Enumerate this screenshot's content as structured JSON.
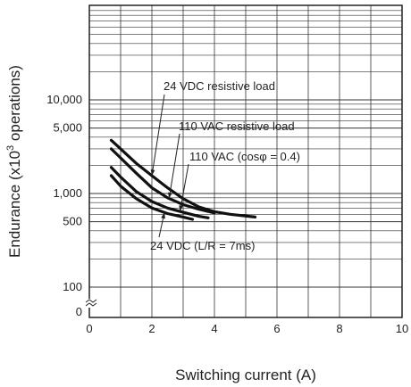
{
  "chart_data": {
    "type": "line",
    "xlabel": "Switching current (A)",
    "ylabel_parts": {
      "prefix": "Endurance (x10",
      "sup": "3",
      "suffix": " operations)"
    },
    "xlim": [
      0,
      10
    ],
    "y_scale": "log (with broken axis below 100)",
    "x_ticks": [
      "0",
      "2",
      "4",
      "6",
      "8",
      "10"
    ],
    "y_ticks": [
      {
        "label": "10,000",
        "value": 10000
      },
      {
        "label": "5,000",
        "value": 5000
      },
      {
        "label": "1,000",
        "value": 1000
      },
      {
        "label": "500",
        "value": 500
      },
      {
        "label": "100",
        "value": 100
      },
      {
        "label": "0",
        "value": 0
      }
    ],
    "grid": true,
    "series": [
      {
        "name": "24 VDC resistive load",
        "x": [
          0.7,
          1.0,
          1.5,
          2.0,
          2.5,
          3.0,
          3.5,
          4.0,
          4.5,
          5.3
        ],
        "y": [
          3700,
          3000,
          2100,
          1550,
          1150,
          880,
          720,
          640,
          600,
          560
        ]
      },
      {
        "name": "110 VAC resistive load",
        "x": [
          0.7,
          1.0,
          1.5,
          2.0,
          2.5,
          3.0,
          3.5,
          4.0
        ],
        "y": [
          3000,
          2400,
          1650,
          1150,
          900,
          760,
          680,
          620
        ]
      },
      {
        "name": "110 VAC (cosφ = 0.4)",
        "x": [
          0.7,
          1.0,
          1.5,
          2.0,
          2.5,
          3.0,
          3.5,
          3.8
        ],
        "y": [
          1900,
          1500,
          1050,
          820,
          700,
          630,
          570,
          550
        ]
      },
      {
        "name": "24 VDC (L/R = 7ms)",
        "x": [
          0.7,
          1.0,
          1.5,
          2.0,
          2.5,
          3.0,
          3.3
        ],
        "y": [
          1550,
          1200,
          880,
          700,
          610,
          560,
          530
        ]
      }
    ],
    "annotations": [
      {
        "series": "24 VDC resistive load",
        "text": "24 VDC resistive load"
      },
      {
        "series": "110 VAC resistive load",
        "text": "110 VAC resistive load"
      },
      {
        "series": "110 VAC (cosφ = 0.4)",
        "text": "110 VAC (cosφ = 0.4)"
      },
      {
        "series": "24 VDC (L/R = 7ms)",
        "text": "24 VDC (L/R = 7ms)"
      }
    ]
  }
}
